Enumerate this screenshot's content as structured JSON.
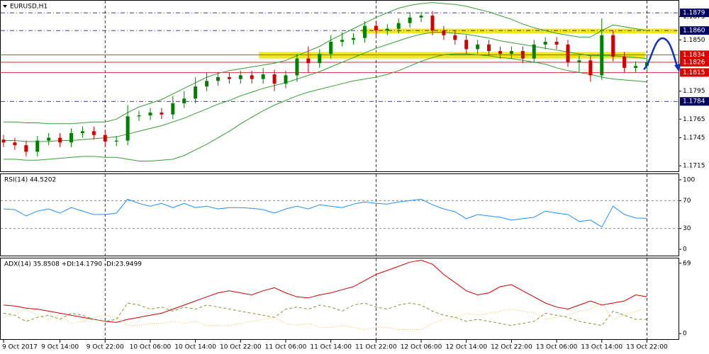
{
  "chart_data": [
    {
      "type": "candlestick",
      "title": "EURUSD,H1",
      "categories": [
        "9 Oct 2017",
        null,
        null,
        null,
        null,
        "9 Oct 14:00",
        null,
        null,
        null,
        "9 Oct 22:00",
        null,
        null,
        null,
        "10 Oct 06:00",
        null,
        null,
        null,
        "10 Oct 14:00",
        null,
        null,
        null,
        "10 Oct 22:00",
        null,
        null,
        null,
        "11 Oct 06:00",
        null,
        null,
        null,
        "11 Oct 14:00",
        null,
        null,
        null,
        "11 Oct 22:00",
        null,
        null,
        null,
        "12 Oct 06:00",
        null,
        null,
        null,
        "12 Oct 14:00",
        null,
        null,
        null,
        "12 Oct 22:00",
        null,
        null,
        null,
        "13 Oct 06:00",
        null,
        null,
        null,
        "13 Oct 14:00",
        null,
        null,
        null,
        "13 Oct 22:00"
      ],
      "open": [
        1.1743,
        1.174,
        1.1737,
        1.173,
        1.1742,
        1.1745,
        1.174,
        1.175,
        1.1752,
        1.1748,
        1.1741,
        1.1742,
        1.1768,
        1.1769,
        1.1772,
        1.177,
        1.1782,
        1.1787,
        1.18,
        1.1806,
        1.181,
        1.1808,
        1.1812,
        1.1808,
        1.1813,
        1.1803,
        1.1812,
        1.183,
        1.1825,
        1.1835,
        1.1848,
        1.185,
        1.1852,
        1.1865,
        1.186,
        1.1862,
        1.1868,
        1.1874,
        1.1876,
        1.186,
        1.1855,
        1.185,
        1.184,
        1.1845,
        1.1838,
        1.1835,
        1.1838,
        1.183,
        1.1845,
        1.1848,
        1.1845,
        1.1826,
        1.1828,
        1.1812,
        1.1855,
        1.1832,
        1.182,
        1.1822
      ],
      "high": [
        1.1748,
        1.1745,
        1.1742,
        1.1747,
        1.175,
        1.175,
        1.1755,
        1.1757,
        1.1757,
        1.1753,
        1.1747,
        1.178,
        1.1774,
        1.1777,
        1.1777,
        1.179,
        1.1795,
        1.181,
        1.1815,
        1.1815,
        1.1815,
        1.1817,
        1.1817,
        1.182,
        1.1818,
        1.1817,
        1.1835,
        1.1843,
        1.184,
        1.1855,
        1.1858,
        1.1857,
        1.187,
        1.187,
        1.1867,
        1.1873,
        1.1879,
        1.188,
        1.1881,
        1.1865,
        1.186,
        1.1855,
        1.185,
        1.185,
        1.1843,
        1.1843,
        1.1843,
        1.185,
        1.1853,
        1.1853,
        1.185,
        1.1833,
        1.1833,
        1.1873,
        1.186,
        1.1837,
        1.1827,
        1.183
      ],
      "low": [
        1.1735,
        1.1732,
        1.1725,
        1.1725,
        1.1737,
        1.1735,
        1.1735,
        1.1745,
        1.1743,
        1.1736,
        1.1736,
        1.1737,
        1.1763,
        1.1764,
        1.1765,
        1.1765,
        1.1777,
        1.1782,
        1.1795,
        1.1801,
        1.1803,
        1.1803,
        1.1803,
        1.1803,
        1.1795,
        1.1798,
        1.1805,
        1.1815,
        1.182,
        1.183,
        1.1843,
        1.1845,
        1.1847,
        1.1855,
        1.1855,
        1.1857,
        1.1863,
        1.1869,
        1.1855,
        1.185,
        1.1845,
        1.1835,
        1.1835,
        1.1833,
        1.183,
        1.183,
        1.1825,
        1.1825,
        1.184,
        1.184,
        1.1821,
        1.1815,
        1.1805,
        1.1807,
        1.1827,
        1.1815,
        1.1815,
        1.1818
      ],
      "close": [
        1.174,
        1.1737,
        1.173,
        1.1742,
        1.1745,
        1.174,
        1.175,
        1.1752,
        1.1748,
        1.1741,
        1.1742,
        1.1768,
        1.1769,
        1.1772,
        1.177,
        1.1782,
        1.1787,
        1.18,
        1.1806,
        1.181,
        1.1808,
        1.1812,
        1.1808,
        1.1813,
        1.1803,
        1.1812,
        1.183,
        1.1825,
        1.1835,
        1.1848,
        1.185,
        1.1852,
        1.1865,
        1.186,
        1.1862,
        1.1868,
        1.1874,
        1.1876,
        1.186,
        1.1855,
        1.185,
        1.184,
        1.1845,
        1.1838,
        1.1835,
        1.1838,
        1.183,
        1.1845,
        1.1848,
        1.1845,
        1.1826,
        1.1828,
        1.1812,
        1.1855,
        1.1832,
        1.182,
        1.1822,
        1.1826
      ],
      "up_color": "#008000",
      "down_color": "#d00000",
      "series": [
        {
          "color": "#33a033",
          "values": [
            1.1762,
            1.1762,
            1.1761,
            1.1761,
            1.176,
            1.176,
            1.176,
            1.1761,
            1.1762,
            1.1762,
            1.1765,
            1.1772,
            1.1778,
            1.1782,
            1.1786,
            1.1792,
            1.1798,
            1.1804,
            1.181,
            1.1814,
            1.1817,
            1.1819,
            1.1821,
            1.1823,
            1.1825,
            1.1828,
            1.1833,
            1.1838,
            1.1843,
            1.185,
            1.1856,
            1.1862,
            1.1868,
            1.1874,
            1.1879,
            1.1884,
            1.1887,
            1.1889,
            1.189,
            1.1889,
            1.1888,
            1.1886,
            1.1883,
            1.188,
            1.1876,
            1.1872,
            1.1867,
            1.1863,
            1.186,
            1.1857,
            1.1855,
            1.1853,
            1.1853,
            1.186,
            1.1866,
            1.1864,
            1.1862,
            1.186
          ]
        },
        {
          "color": "#33a033",
          "values": [
            1.1742,
            1.1742,
            1.1741,
            1.1741,
            1.1741,
            1.1742,
            1.1742,
            1.1743,
            1.1744,
            1.1745,
            1.1746,
            1.1749,
            1.1752,
            1.1755,
            1.1758,
            1.1762,
            1.1766,
            1.1771,
            1.1776,
            1.1781,
            1.1785,
            1.179,
            1.1794,
            1.1798,
            1.1801,
            1.1804,
            1.1808,
            1.1812,
            1.1816,
            1.1821,
            1.1826,
            1.1831,
            1.1836,
            1.1841,
            1.1845,
            1.1849,
            1.1853,
            1.1856,
            1.1858,
            1.1858,
            1.1857,
            1.1856,
            1.1854,
            1.1852,
            1.1849,
            1.1847,
            1.1845,
            1.1843,
            1.1841,
            1.1839,
            1.1837,
            1.1835,
            1.1833,
            1.1833,
            1.1833,
            1.1832,
            1.1831,
            1.183
          ]
        },
        {
          "color": "#33a033",
          "values": [
            1.1722,
            1.1722,
            1.1721,
            1.1721,
            1.1722,
            1.1723,
            1.1724,
            1.1725,
            1.1725,
            1.1724,
            1.1724,
            1.1722,
            1.172,
            1.172,
            1.1721,
            1.1722,
            1.1726,
            1.1732,
            1.1738,
            1.1745,
            1.1752,
            1.176,
            1.1767,
            1.1774,
            1.178,
            1.1785,
            1.179,
            1.1794,
            1.1797,
            1.18,
            1.1803,
            1.1806,
            1.1808,
            1.181,
            1.1813,
            1.1817,
            1.1822,
            1.1827,
            1.1831,
            1.1834,
            1.1835,
            1.1835,
            1.1834,
            1.1833,
            1.1831,
            1.183,
            1.1828,
            1.1826,
            1.1824,
            1.182,
            1.1817,
            1.1815,
            1.1813,
            1.181,
            1.1808,
            1.1807,
            1.1806,
            1.1805
          ]
        }
      ],
      "ylim": [
        1.1709,
        1.1892
      ],
      "yticks": [
        1.1875,
        {
          "value": 1.185,
          "label": "1.1850"
        },
        1.1795,
        1.1765,
        1.1745,
        1.1715
      ],
      "levels": [
        {
          "value": 1.1879,
          "color": "#000060",
          "style": "dashdot"
        },
        {
          "value": 1.186,
          "label": "1.1860",
          "color": "#000060",
          "style": "dashdot"
        },
        {
          "value": 1.1834,
          "color": "#e00000",
          "style": "solid"
        },
        {
          "value": 1.1826,
          "color": "#e00000",
          "style": "solid"
        },
        {
          "value": 1.1815,
          "color": "#e00000",
          "style": "solid"
        },
        {
          "value": 1.1784,
          "color": "#000060",
          "style": "dashdot"
        }
      ],
      "zones": [
        {
          "ylim": [
            1.1857,
            1.1862
          ],
          "color": "#f0e000"
        },
        {
          "ylim": [
            1.183,
            1.1837
          ],
          "color": "#f0e000"
        }
      ]
    },
    {
      "type": "line",
      "title": "RSI(14) 44.5202",
      "series": [
        {
          "color": "#1e90ff",
          "values": [
            58,
            57,
            48,
            55,
            58,
            52,
            60,
            55,
            50,
            50,
            52,
            72,
            66,
            62,
            66,
            60,
            66,
            60,
            62,
            58,
            60,
            60,
            59,
            57,
            52,
            58,
            62,
            58,
            64,
            62,
            60,
            65,
            68,
            66,
            65,
            68,
            70,
            72,
            64,
            58,
            54,
            44,
            50,
            48,
            46,
            42,
            44,
            46,
            55,
            52,
            50,
            40,
            42,
            32,
            62,
            50,
            45,
            44.5
          ]
        }
      ],
      "ylim": [
        -9,
        108
      ],
      "yticks": [
        100,
        70,
        30,
        0
      ],
      "hlines": [
        70,
        30
      ]
    },
    {
      "type": "line",
      "title": "ADX(14) 35.8508 +DI:14.1790 -DI:23.9499",
      "series": [
        {
          "color": "#d00000",
          "style": "solid",
          "values": [
            28,
            27,
            25,
            24,
            22,
            20,
            18,
            16,
            14,
            12,
            11,
            14,
            16,
            18,
            20,
            24,
            28,
            32,
            36,
            40,
            42,
            40,
            38,
            42,
            45,
            40,
            36,
            35,
            38,
            40,
            43,
            46,
            52,
            58,
            62,
            66,
            70,
            72,
            68,
            58,
            50,
            42,
            38,
            40,
            46,
            48,
            42,
            36,
            30,
            26,
            24,
            28,
            32,
            28,
            30,
            32,
            38,
            36
          ]
        },
        {
          "color": "#7a9a3a",
          "style": "dashed",
          "values": [
            20,
            18,
            12,
            16,
            18,
            14,
            20,
            18,
            14,
            12,
            14,
            30,
            28,
            24,
            26,
            22,
            26,
            24,
            28,
            26,
            24,
            22,
            20,
            18,
            16,
            24,
            26,
            24,
            28,
            26,
            22,
            28,
            30,
            26,
            24,
            28,
            30,
            28,
            22,
            18,
            16,
            12,
            14,
            12,
            10,
            8,
            10,
            12,
            20,
            18,
            16,
            12,
            10,
            8,
            22,
            18,
            14,
            14
          ]
        },
        {
          "color": "#e8c040",
          "style": "dotted",
          "values": [
            16,
            18,
            24,
            18,
            14,
            18,
            10,
            12,
            16,
            18,
            16,
            8,
            8,
            10,
            10,
            12,
            10,
            12,
            8,
            8,
            8,
            10,
            12,
            14,
            16,
            10,
            8,
            10,
            6,
            6,
            8,
            6,
            4,
            6,
            6,
            4,
            4,
            4,
            10,
            14,
            16,
            20,
            18,
            20,
            22,
            24,
            22,
            20,
            14,
            16,
            18,
            22,
            24,
            30,
            14,
            18,
            22,
            24
          ]
        }
      ],
      "ylim": [
        -5.4,
        73.7
      ],
      "yticks": [
        69,
        0
      ]
    }
  ]
}
